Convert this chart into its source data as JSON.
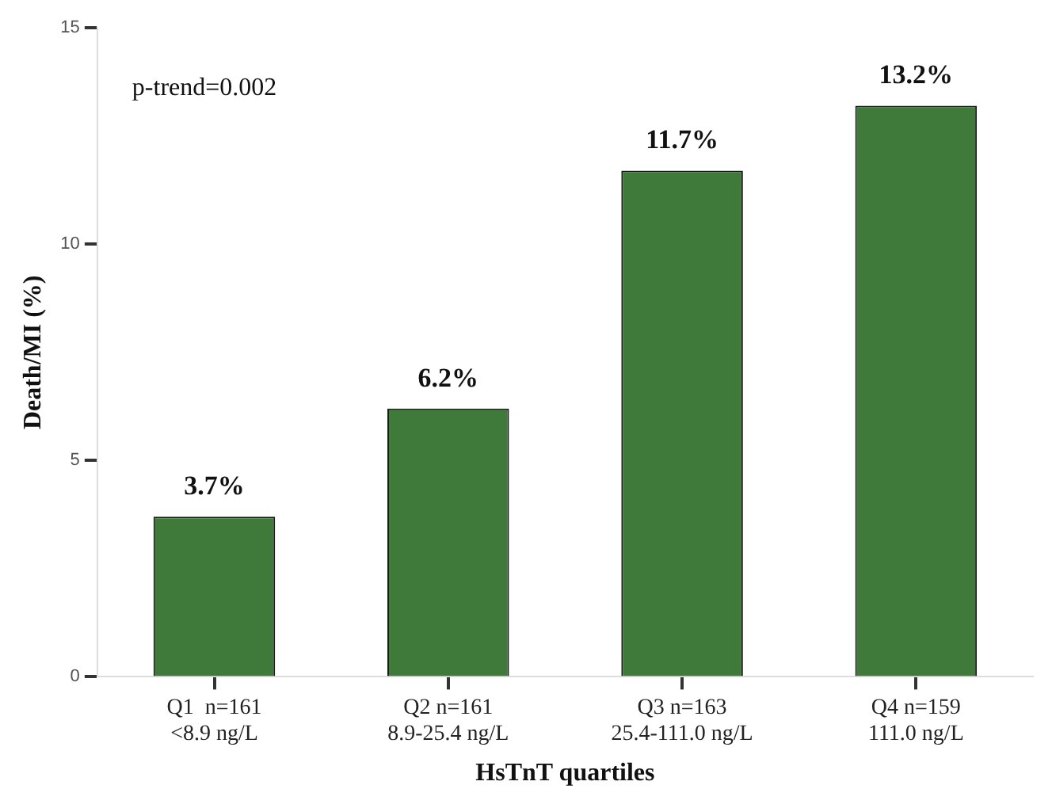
{
  "chart_data": {
    "type": "bar",
    "xlabel": "HsTnT quartiles",
    "ylabel": "Death/MI (%)",
    "categories": [
      "Q1  n=161\n<8.9 ng/L",
      "Q2 n=161\n8.9-25.4 ng/L",
      "Q3 n=163\n25.4-111.0 ng/L",
      "Q4 n=159\n111.0 ng/L"
    ],
    "values": [
      3.7,
      6.2,
      11.7,
      13.2
    ],
    "value_labels": [
      "3.7%",
      "6.2%",
      "11.7%",
      "13.2%"
    ],
    "color": "#407a3a",
    "ylim": [
      0,
      15
    ],
    "yticks": [
      0,
      5,
      10,
      15
    ],
    "grid": false,
    "annotations": [
      "p-trend=0.002"
    ]
  }
}
